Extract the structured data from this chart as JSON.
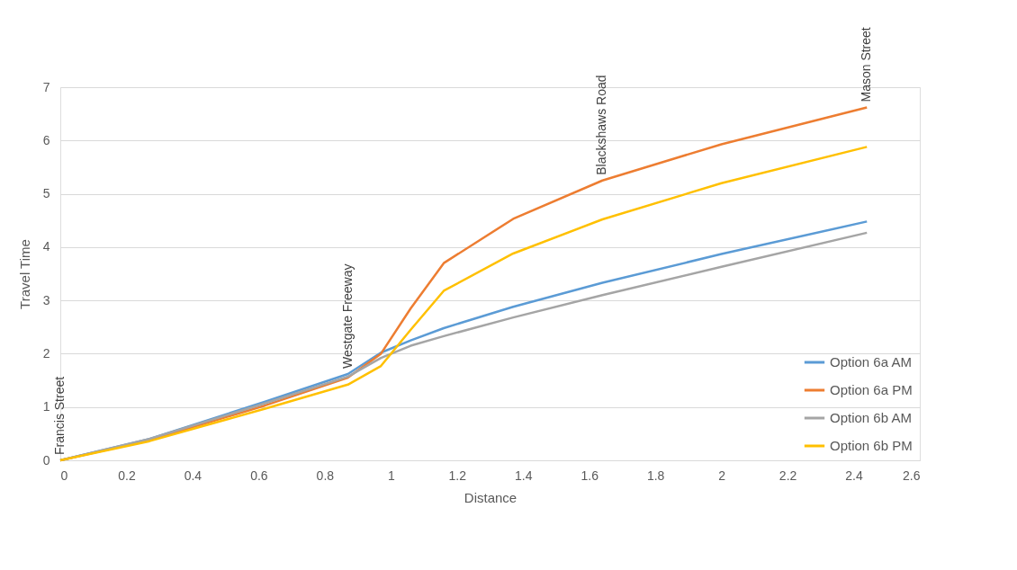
{
  "chart_data": {
    "type": "line",
    "xlabel": "Distance",
    "ylabel": "Travel Time",
    "x": [
      0,
      0.27,
      0.62,
      0.87,
      0.97,
      1.06,
      1.16,
      1.37,
      1.64,
      2.0,
      2.44
    ],
    "series": [
      {
        "name": "Option 6a AM",
        "color": "#5b9bd5",
        "values": [
          0,
          0.4,
          1.1,
          1.62,
          2.02,
          2.25,
          2.48,
          2.88,
          3.33,
          3.87,
          4.48
        ]
      },
      {
        "name": "Option 6a PM",
        "color": "#ed7d31",
        "values": [
          0,
          0.38,
          1.03,
          1.55,
          2.0,
          2.85,
          3.7,
          4.53,
          5.25,
          5.93,
          6.62
        ]
      },
      {
        "name": "Option 6b AM",
        "color": "#a5a5a5",
        "values": [
          0,
          0.4,
          1.07,
          1.57,
          1.92,
          2.15,
          2.33,
          2.68,
          3.1,
          3.63,
          4.27
        ]
      },
      {
        "name": "Option 6b PM",
        "color": "#ffc000",
        "values": [
          0,
          0.36,
          0.97,
          1.42,
          1.77,
          2.45,
          3.18,
          3.88,
          4.52,
          5.2,
          5.88
        ]
      }
    ],
    "xlim": [
      0,
      2.6
    ],
    "xticks": [
      0,
      0.2,
      0.4,
      0.6,
      0.8,
      1,
      1.2,
      1.4,
      1.6,
      1.8,
      2,
      2.2,
      2.4,
      2.6
    ],
    "ylim": [
      0,
      7
    ],
    "yticks": [
      0,
      1,
      2,
      3,
      4,
      5,
      6,
      7
    ],
    "grid": "y",
    "legend": "bottom right",
    "marker": "none",
    "line_style": "solid",
    "annotations": [
      {
        "text": "Francis Street",
        "x": 0,
        "y": 0
      },
      {
        "text": "Westgate Freeway",
        "x": 0.87,
        "y": 1.62
      },
      {
        "text": "Blackshaws Road",
        "x": 1.64,
        "y": 5.25
      },
      {
        "text": "Mason Street",
        "x": 2.44,
        "y": 6.62
      }
    ]
  }
}
